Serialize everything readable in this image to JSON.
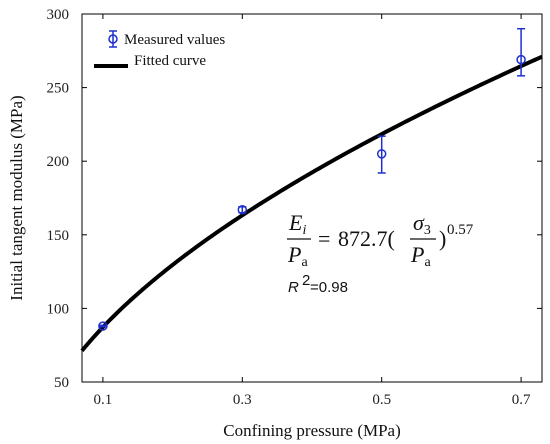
{
  "chart_data": {
    "type": "scatter",
    "xlabel": "Confining pressure (MPa)",
    "ylabel": "Initial tangent modulus (MPa)",
    "xlim": [
      0.07,
      0.73
    ],
    "ylim": [
      50,
      300
    ],
    "xticks": [
      0.1,
      0.3,
      0.5,
      0.7
    ],
    "xtick_labels": [
      "0.1",
      "0.3",
      "0.5",
      "0.7"
    ],
    "yticks": [
      50,
      100,
      150,
      200,
      250,
      300
    ],
    "ytick_labels": [
      "50",
      "100",
      "150",
      "200",
      "250",
      "300"
    ],
    "grid": false,
    "legend_position": "top-left",
    "series": [
      {
        "name": "Measured values",
        "kind": "points-with-error-bars",
        "color": "#1f2fd0",
        "x": [
          0.1,
          0.3,
          0.5,
          0.7
        ],
        "y": [
          88,
          167,
          205,
          269
        ],
        "err_low": [
          0.5,
          2,
          13,
          11
        ],
        "err_high": [
          0.5,
          2,
          12,
          21
        ]
      },
      {
        "name": "Fitted curve",
        "kind": "curve",
        "color": "#000000",
        "model": "872.7*0.1*(x/0.1)^0.57",
        "x_range": [
          0.07,
          0.73
        ]
      }
    ],
    "annotations": {
      "equation": {
        "lhs_num_base": "E",
        "lhs_num_sub": "i",
        "lhs_den_base": "P",
        "lhs_den_sub": "a",
        "equals": "=",
        "coefficient": "872.7(",
        "rhs_num_base": "σ",
        "rhs_num_sub": "3",
        "rhs_den_base": "P",
        "rhs_den_sub": "a",
        "close": ")",
        "exponent": "0.57"
      },
      "r_squared": {
        "label": "R",
        "superscript": "2",
        "value": "=0.98"
      }
    }
  }
}
